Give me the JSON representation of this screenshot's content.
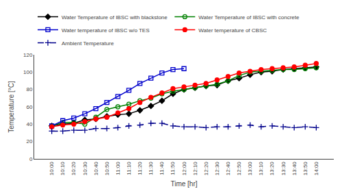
{
  "chart_data": {
    "type": "line",
    "xlabel": "Time [hr]",
    "ylabel": "Temperature [°C]",
    "categories": [
      "10:00",
      "10:10",
      "10:20",
      "10:30",
      "10:40",
      "10:50",
      "11:00",
      "11:10",
      "11:20",
      "11:30",
      "11:40",
      "11:50",
      "12:00",
      "12:10",
      "12:20",
      "12:30",
      "12:40",
      "12:50",
      "13:00",
      "13:10",
      "13:20",
      "13:30",
      "13:40",
      "13:50",
      "14:00"
    ],
    "series": [
      {
        "name": "Water Temperature of IBSC with blackstone",
        "color": "#000000",
        "marker": "diamond",
        "line_style": "solid",
        "values": [
          38,
          40,
          41,
          45,
          46,
          49,
          51,
          52,
          56,
          61,
          67,
          75,
          80,
          82,
          84,
          85,
          90,
          93,
          97,
          100,
          101,
          103,
          104,
          105,
          106
        ]
      },
      {
        "name": "Water Temperature of IBSC with concrete",
        "color": "#008000",
        "marker": "circle-open",
        "line_style": "solid",
        "values": [
          38,
          42,
          42,
          40,
          48,
          57,
          60,
          63,
          67,
          70,
          75,
          78,
          80,
          82,
          84,
          86,
          90,
          96,
          100,
          101,
          102,
          103,
          103,
          104,
          105
        ]
      },
      {
        "name": "Water temperature of IBSC w/o TES",
        "color": "#0000cc",
        "marker": "square-open",
        "line_style": "solid",
        "values": [
          38,
          44,
          47,
          52,
          58,
          65,
          72,
          79,
          87,
          93,
          99,
          103,
          104,
          null,
          null,
          null,
          null,
          null,
          null,
          null,
          null,
          null,
          null,
          null,
          null
        ]
      },
      {
        "name": "Water temperature of CBSC",
        "color": "#FF0000",
        "marker": "circle",
        "line_style": "solid",
        "values": [
          37,
          39,
          40,
          43,
          46,
          48,
          53,
          58,
          65,
          71,
          76,
          81,
          83,
          85,
          87,
          91,
          95,
          99,
          101,
          103,
          104,
          105,
          106,
          108,
          110
        ]
      },
      {
        "name": "Ambient Temperature",
        "color": "#00008B",
        "marker": "plus",
        "line_style": "dashed",
        "values": [
          32,
          32,
          33,
          33,
          35,
          35,
          36,
          38,
          39,
          41,
          41,
          38,
          37,
          37,
          36,
          37,
          37,
          38,
          39,
          37,
          38,
          37,
          36,
          37,
          36
        ]
      }
    ],
    "ylim": [
      0,
      120
    ],
    "yticks": [
      0,
      20,
      40,
      60,
      80,
      100,
      120
    ],
    "grid": false,
    "legend": "top"
  }
}
